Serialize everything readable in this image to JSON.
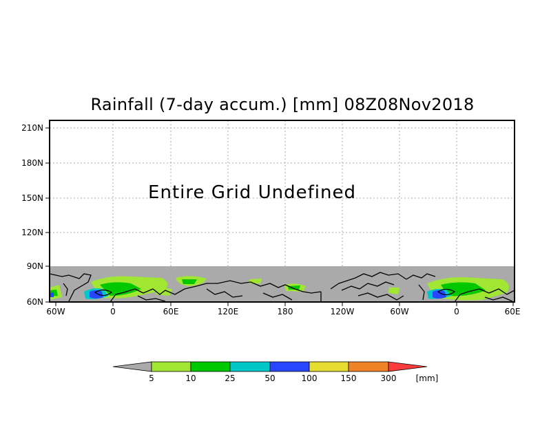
{
  "title": "Rainfall (7-day accum.) [mm] 08Z08Nov2018",
  "message": "Entire Grid Undefined",
  "map": {
    "lat_ticks": [
      "210N",
      "180N",
      "150N",
      "120N",
      "90N",
      "60N"
    ],
    "lon_ticks": [
      "60W",
      "0",
      "60E",
      "120E",
      "180",
      "120W",
      "60W",
      "0",
      "60E"
    ],
    "land_color": "#aaaaaa",
    "grid": "dotted"
  },
  "colorbar": {
    "unit": "[mm]",
    "labels": [
      "5",
      "10",
      "25",
      "50",
      "100",
      "150",
      "300"
    ],
    "colors": [
      "#aaaaaa",
      "#a0e632",
      "#00c800",
      "#00c8c8",
      "#2846ff",
      "#e6dc32",
      "#f08228",
      "#fa3c3c"
    ]
  }
}
